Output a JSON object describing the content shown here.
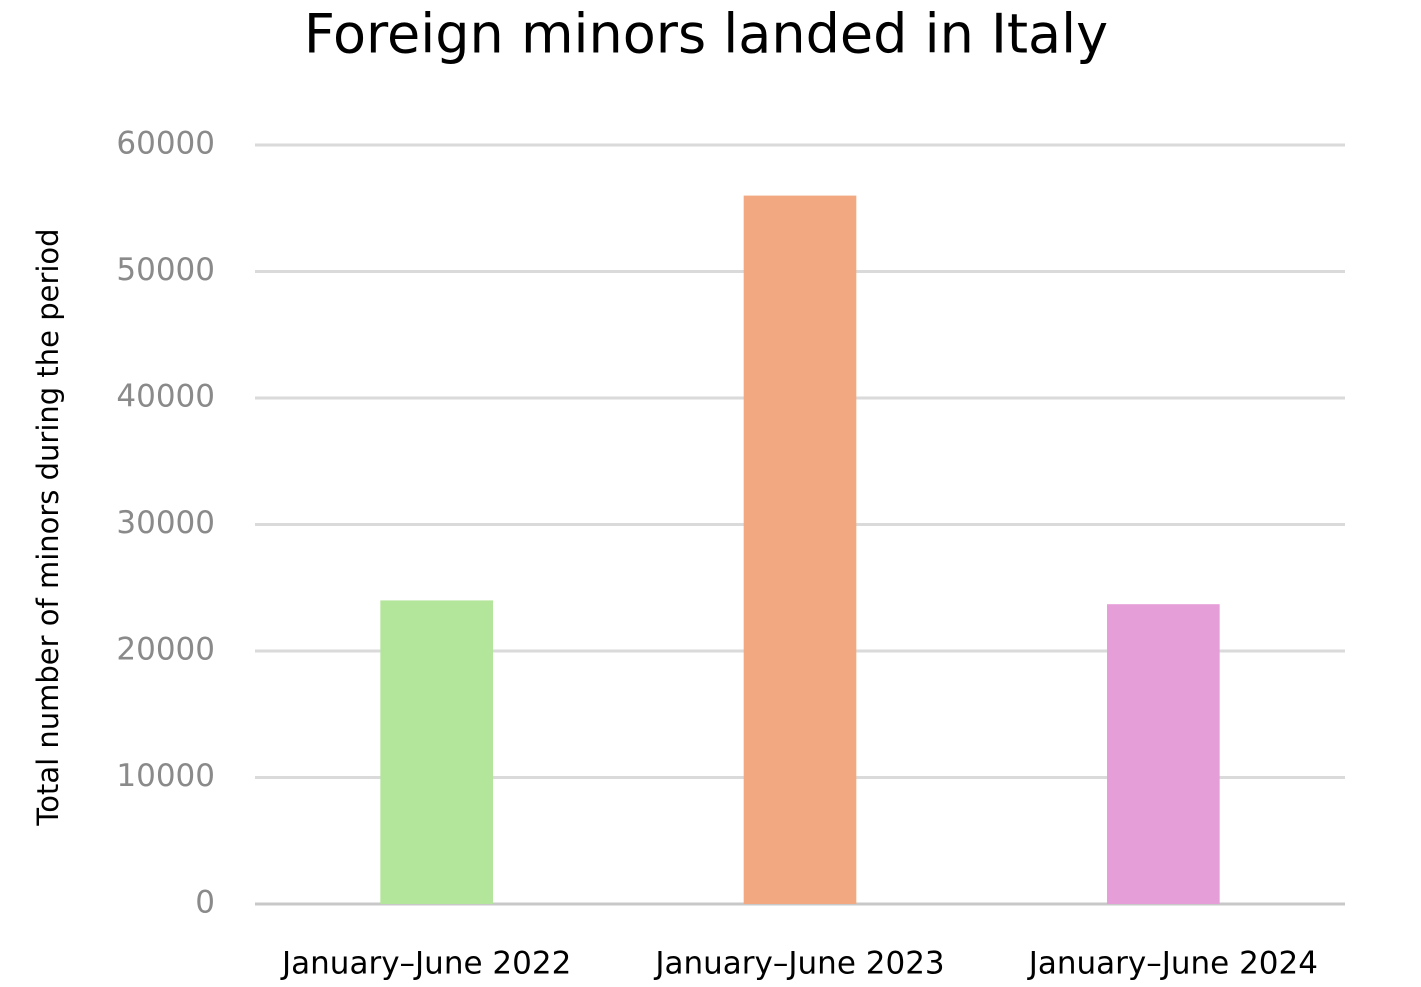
{
  "chart_data": {
    "type": "bar",
    "title": "Foreign minors landed in Italy",
    "y_label": "Total number of minors during the period",
    "categories": [
      "January–June 2022",
      "January–June 2023",
      "January–June 2024"
    ],
    "values": [
      24000,
      56000,
      23700
    ],
    "colors": [
      "#b3e59b",
      "#f2a880",
      "#e69ed8"
    ],
    "ylim": [
      0,
      60000
    ],
    "yticks": [
      0,
      10000,
      20000,
      30000,
      40000,
      50000,
      60000
    ],
    "grid": true
  }
}
